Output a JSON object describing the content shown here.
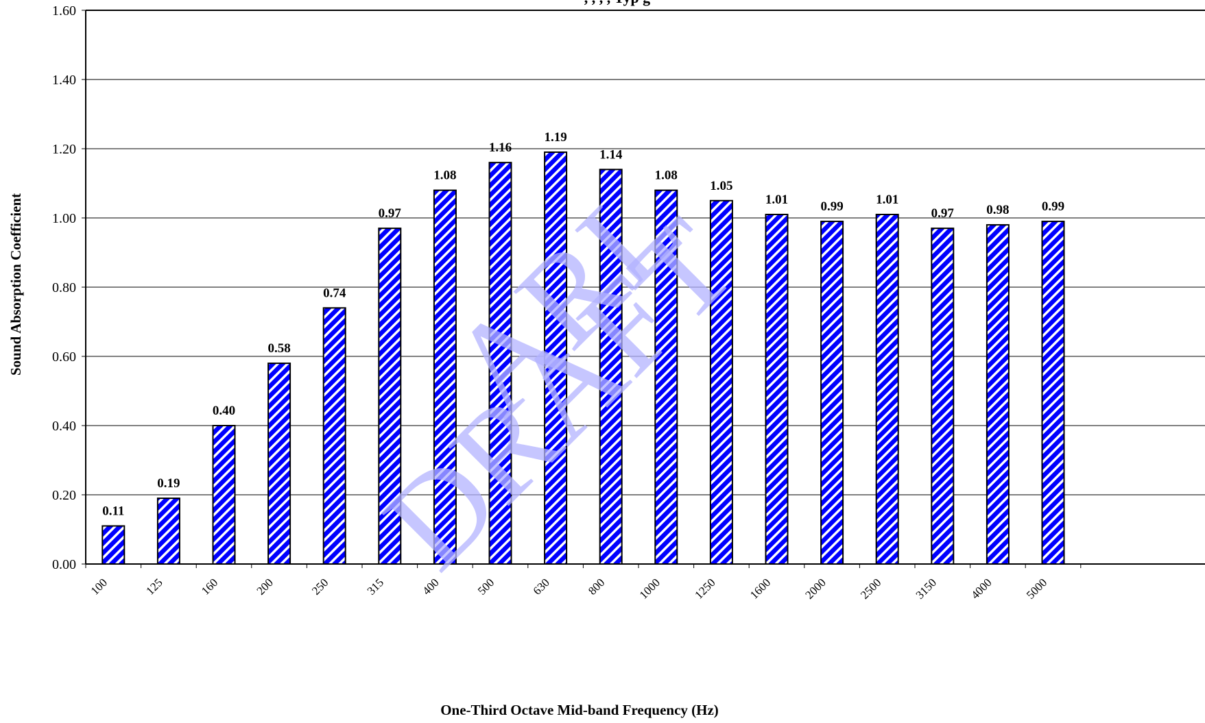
{
  "chart_data": {
    "type": "bar",
    "title": ", , , , Typ g",
    "xlabel": "One-Third Octave Mid-band Frequency (Hz)",
    "ylabel": "Sound Absorption Coefficient",
    "categories": [
      "100",
      "125",
      "160",
      "200",
      "250",
      "315",
      "400",
      "500",
      "630",
      "800",
      "1000",
      "1250",
      "1600",
      "2000",
      "2500",
      "3150",
      "4000",
      "5000"
    ],
    "values": [
      0.11,
      0.19,
      0.4,
      0.58,
      0.74,
      0.97,
      1.08,
      1.16,
      1.19,
      1.14,
      1.08,
      1.05,
      1.01,
      0.99,
      1.01,
      0.97,
      0.98,
      0.99
    ],
    "data_labels": [
      "0.11",
      "0.19",
      "0.40",
      "0.58",
      "0.74",
      "0.97",
      "1.08",
      "1.16",
      "1.19",
      "1.14",
      "1.08",
      "1.05",
      "1.01",
      "0.99",
      "1.01",
      "0.97",
      "0.98",
      "0.99"
    ],
    "y_ticks": [
      "0.00",
      "0.20",
      "0.40",
      "0.60",
      "0.80",
      "1.00",
      "1.20",
      "1.40",
      "1.60"
    ],
    "ylim": [
      0,
      1.6
    ],
    "grid": true,
    "bar_color": "#0000ff",
    "bar_stripe_color": "#ffffff",
    "legend": "none"
  },
  "watermark": {
    "line1": "ARL",
    "line2": "DRAFT",
    "color": "#b3b3ff"
  }
}
